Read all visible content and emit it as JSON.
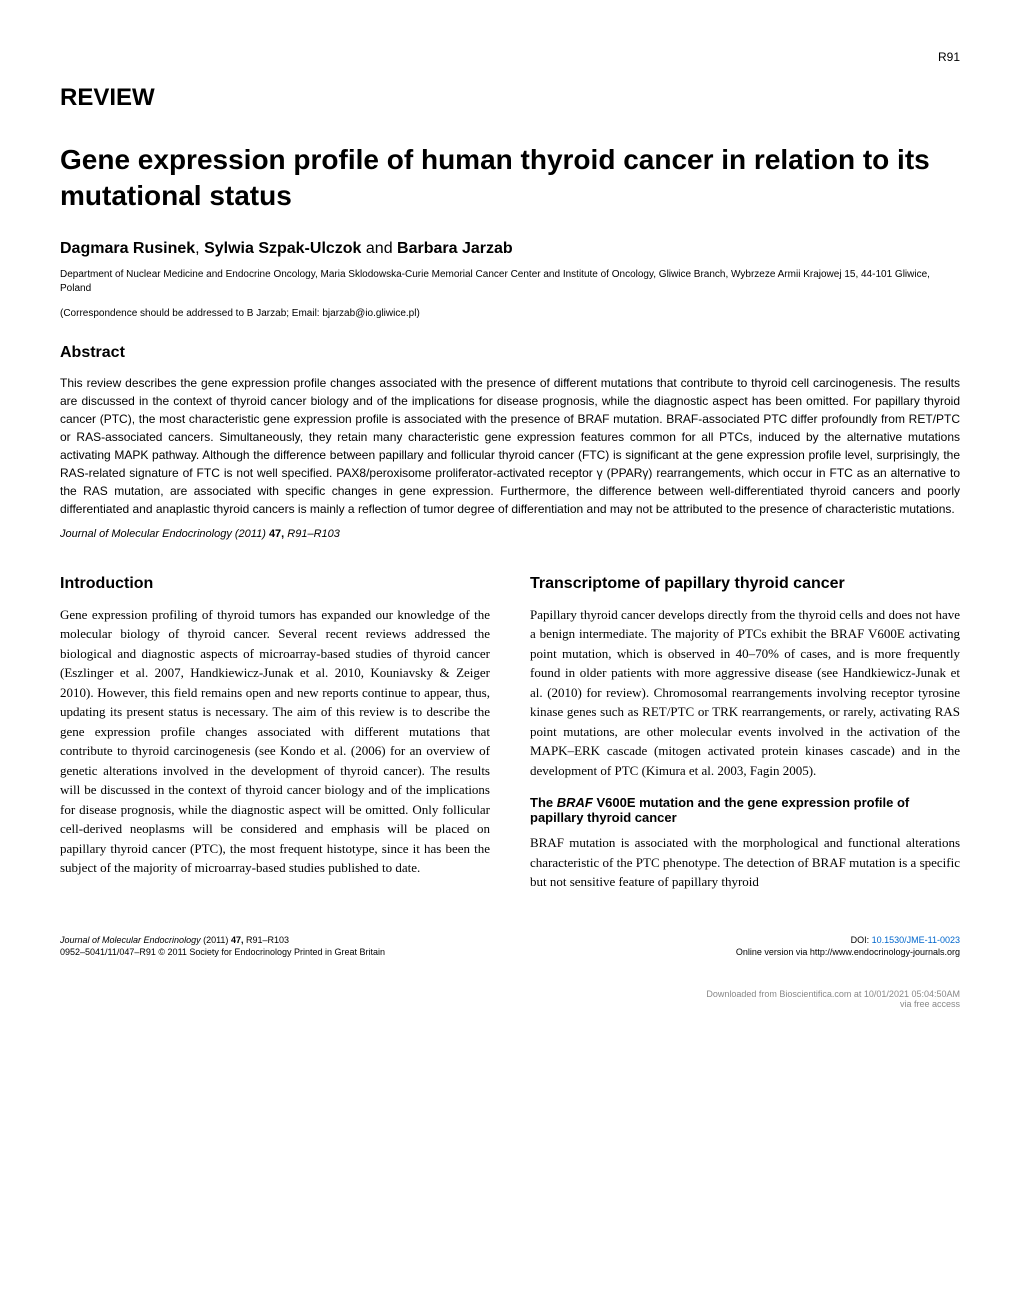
{
  "page_number": "R91",
  "article_type": "REVIEW",
  "title": "Gene expression profile of human thyroid cancer in relation to its mutational status",
  "authors": {
    "author1": "Dagmara Rusinek",
    "author2": "Sylwia Szpak-Ulczok",
    "connector": " and ",
    "author3": "Barbara Jarzab",
    "separator": ", "
  },
  "affiliation": "Department of Nuclear Medicine and Endocrine Oncology, Maria Sklodowska-Curie Memorial Cancer Center and Institute of Oncology, Gliwice Branch, Wybrzeze Armii Krajowej 15, 44-101 Gliwice, Poland",
  "correspondence": "(Correspondence should be addressed to B Jarzab; Email: bjarzab@io.gliwice.pl)",
  "abstract": {
    "heading": "Abstract",
    "text": "This review describes the gene expression profile changes associated with the presence of different mutations that contribute to thyroid cell carcinogenesis. The results are discussed in the context of thyroid cancer biology and of the implications for disease prognosis, while the diagnostic aspect has been omitted. For papillary thyroid cancer (PTC), the most characteristic gene expression profile is associated with the presence of BRAF mutation. BRAF-associated PTC differ profoundly from RET/PTC or RAS-associated cancers. Simultaneously, they retain many characteristic gene expression features common for all PTCs, induced by the alternative mutations activating MAPK pathway. Although the difference between papillary and follicular thyroid cancer (FTC) is significant at the gene expression profile level, surprisingly, the RAS-related signature of FTC is not well specified. PAX8/peroxisome proliferator-activated receptor γ (PPARγ) rearrangements, which occur in FTC as an alternative to the RAS mutation, are associated with specific changes in gene expression. Furthermore, the difference between well-differentiated thyroid cancers and poorly differentiated and anaplastic thyroid cancers is mainly a reflection of tumor degree of differentiation and may not be attributed to the presence of characteristic mutations."
  },
  "journal_citation": {
    "journal": "Journal of Molecular Endocrinology",
    "year": "(2011)",
    "volume": "47,",
    "pages": "R91–R103"
  },
  "introduction": {
    "heading": "Introduction",
    "text": "Gene expression profiling of thyroid tumors has expanded our knowledge of the molecular biology of thyroid cancer. Several recent reviews addressed the biological and diagnostic aspects of microarray-based studies of thyroid cancer (Eszlinger et al. 2007, Handkiewicz-Junak et al. 2010, Kouniavsky & Zeiger 2010). However, this field remains open and new reports continue to appear, thus, updating its present status is necessary. The aim of this review is to describe the gene expression profile changes associated with different mutations that contribute to thyroid carcinogenesis (see Kondo et al. (2006) for an overview of genetic alterations involved in the development of thyroid cancer). The results will be discussed in the context of thyroid cancer biology and of the implications for disease prognosis, while the diagnostic aspect will be omitted. Only follicular cell-derived neoplasms will be considered and emphasis will be placed on papillary thyroid cancer (PTC), the most frequent histotype, since it has been the subject of the majority of microarray-based studies published to date."
  },
  "transcriptome": {
    "heading": "Transcriptome of papillary thyroid cancer",
    "text": "Papillary thyroid cancer develops directly from the thyroid cells and does not have a benign intermediate. The majority of PTCs exhibit the BRAF V600E activating point mutation, which is observed in 40–70% of cases, and is more frequently found in older patients with more aggressive disease (see Handkiewicz-Junak et al. (2010) for review). Chromosomal rearrangements involving receptor tyrosine kinase genes such as RET/PTC or TRK rearrangements, or rarely, activating RAS point mutations, are other molecular events involved in the activation of the MAPK–ERK cascade (mitogen activated protein kinases cascade) and in the development of PTC (Kimura et al. 2003, Fagin 2005)."
  },
  "braf_section": {
    "heading_prefix": "The ",
    "heading_gene": "BRAF",
    "heading_suffix": " V600E mutation and the gene expression profile of papillary thyroid cancer",
    "text": "BRAF mutation is associated with the morphological and functional alterations characteristic of the PTC phenotype. The detection of BRAF mutation is a specific but not sensitive feature of papillary thyroid"
  },
  "footer": {
    "left_line1_journal": "Journal of Molecular Endocrinology",
    "left_line1_rest": " (2011) ",
    "left_line1_vol": "47,",
    "left_line1_pages": " R91–R103",
    "left_line2": "0952–5041/11/047–R91 © 2011 Society for Endocrinology    Printed in Great Britain",
    "right_line1_prefix": "DOI: ",
    "right_line1_doi": "10.1530/JME-11-0023",
    "right_line2": "Online version via http://www.endocrinology-journals.org"
  },
  "download_note": {
    "line1": "Downloaded from Bioscientifica.com at 10/01/2021 05:04:50AM",
    "line2": "via free access"
  },
  "colors": {
    "text": "#000000",
    "background": "#ffffff",
    "link": "#0066cc",
    "muted": "#888888"
  }
}
